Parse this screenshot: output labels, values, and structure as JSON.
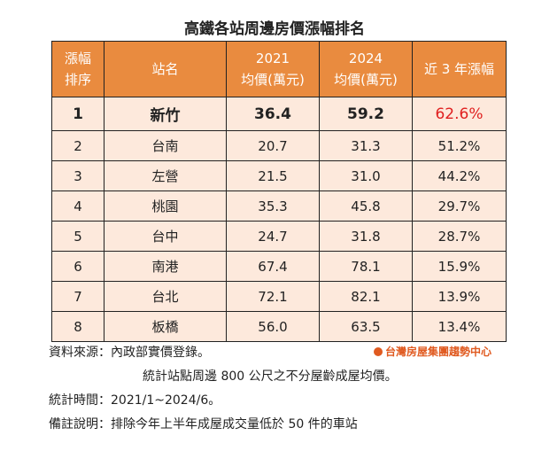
{
  "title": "高鐵各站周邊房價漲幅排名",
  "table": {
    "header": [
      [
        "漲幅",
        "排序"
      ],
      [
        "站名"
      ],
      [
        "2021",
        "均價(萬元)"
      ],
      [
        "2024",
        "均價(萬元)"
      ],
      [
        "近 3 年漲幅"
      ]
    ],
    "rows": [
      [
        "1",
        "新竹",
        "36.4",
        "59.2",
        "62.6%"
      ],
      [
        "2",
        "台南",
        "20.7",
        "31.3",
        "51.2%"
      ],
      [
        "3",
        "左營",
        "21.5",
        "31.0",
        "44.2%"
      ],
      [
        "4",
        "桃園",
        "35.3",
        "45.8",
        "29.7%"
      ],
      [
        "5",
        "台中",
        "24.7",
        "31.8",
        "28.7%"
      ],
      [
        "6",
        "南港",
        "67.4",
        "78.1",
        "15.9%"
      ],
      [
        "7",
        "台北",
        "72.1",
        "82.1",
        "13.9%"
      ],
      [
        "8",
        "板橋",
        "56.0",
        "63.5",
        "13.4%"
      ]
    ]
  },
  "notes": [
    "資料來源：內政部實價登錄。",
    "統計站點周邊 800 公尺之不分屋齡成屋均價。",
    "統計時間：2021/1~2024/6。",
    "備註說明：排除今年上半年成屋成交量低於 50 件的車站"
  ],
  "logo": "台灣房屋集團趨勢中心"
}
